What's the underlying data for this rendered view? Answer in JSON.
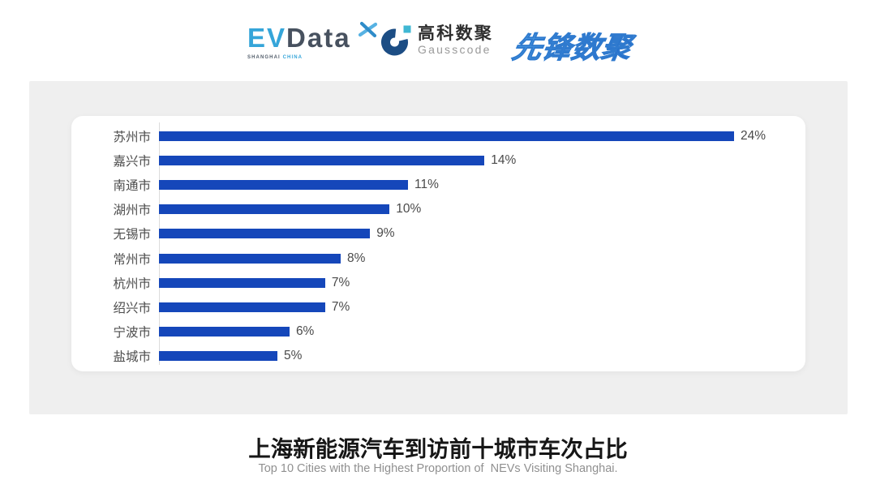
{
  "header": {
    "evdata": {
      "ev": "EV",
      "data": "Data",
      "sub_left": "SHANGHAI",
      "sub_right": "CHINA"
    },
    "gausscode": {
      "cn": "高科数聚",
      "en": "Gausscode"
    },
    "pioneer": {
      "text": "先锋数聚"
    }
  },
  "chart_data": {
    "type": "bar",
    "orientation": "horizontal",
    "title": "上海新能源汽车到访前十城市车次占比",
    "categories": [
      "苏州市",
      "嘉兴市",
      "南通市",
      "湖州市",
      "无锡市",
      "常州市",
      "杭州市",
      "绍兴市",
      "宁波市",
      "盐城市"
    ],
    "values": [
      24,
      14,
      11,
      10,
      9,
      8,
      7,
      7,
      6,
      5
    ],
    "value_labels": [
      "24%",
      "14%",
      "11%",
      "10%",
      "9%",
      "8%",
      "7%",
      "7%",
      "6%",
      "5%"
    ],
    "bar_length_fraction_of_max": [
      1.0,
      0.566,
      0.433,
      0.401,
      0.367,
      0.316,
      0.289,
      0.289,
      0.227,
      0.206
    ],
    "unit": "%",
    "axis_max": 24,
    "bar_color": "#1547ba",
    "legend": false,
    "grid": false
  },
  "footer": {
    "title": "上海新能源汽车到访前十城市车次占比",
    "subtitle": "Top 10 Cities with the Highest Proportion of  NEVs Visiting Shanghai."
  }
}
